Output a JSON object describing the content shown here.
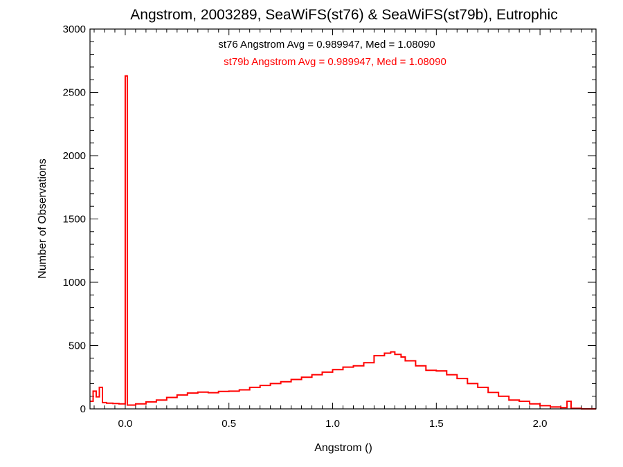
{
  "chart_data": {
    "type": "histogram",
    "title": "Angstrom, 2003289, SeaWiFS(st76) & SeaWiFS(st79b), Eutrophic",
    "xlabel": "Angstrom ()",
    "ylabel": "Number of Observations",
    "xlim": [
      -0.17,
      2.27
    ],
    "ylim": [
      0,
      3000
    ],
    "x_ticks": [
      0.0,
      0.5,
      1.0,
      1.5,
      2.0
    ],
    "x_tick_labels": [
      "0.0",
      "0.5",
      "1.0",
      "1.5",
      "2.0"
    ],
    "y_ticks": [
      0,
      500,
      1000,
      1500,
      2000,
      2500,
      3000
    ],
    "y_tick_labels": [
      "0",
      "500",
      "1000",
      "1500",
      "2000",
      "2500",
      "3000"
    ],
    "annotations": [
      {
        "text": "st76 Angstrom Avg = 0.989947, Med = 1.08090",
        "color": "#000000"
      },
      {
        "text": "st79b Angstrom Avg = 0.989947, Med = 1.08090",
        "color": "#ff0000"
      }
    ],
    "series": [
      {
        "color": "#ff0000",
        "bin_width": 0.01,
        "points": [
          [
            -0.17,
            60
          ],
          [
            -0.155,
            140
          ],
          [
            -0.14,
            95
          ],
          [
            -0.125,
            170
          ],
          [
            -0.11,
            50
          ],
          [
            -0.09,
            45
          ],
          [
            -0.06,
            42
          ],
          [
            -0.03,
            40
          ],
          [
            -0.01,
            40
          ],
          [
            0.0,
            2630
          ],
          [
            0.01,
            30
          ],
          [
            0.05,
            40
          ],
          [
            0.1,
            55
          ],
          [
            0.15,
            70
          ],
          [
            0.2,
            90
          ],
          [
            0.25,
            110
          ],
          [
            0.3,
            125
          ],
          [
            0.35,
            132
          ],
          [
            0.4,
            128
          ],
          [
            0.45,
            138
          ],
          [
            0.5,
            140
          ],
          [
            0.55,
            150
          ],
          [
            0.6,
            170
          ],
          [
            0.65,
            185
          ],
          [
            0.7,
            200
          ],
          [
            0.75,
            215
          ],
          [
            0.8,
            232
          ],
          [
            0.85,
            250
          ],
          [
            0.9,
            270
          ],
          [
            0.95,
            290
          ],
          [
            1.0,
            310
          ],
          [
            1.05,
            330
          ],
          [
            1.1,
            340
          ],
          [
            1.15,
            365
          ],
          [
            1.2,
            420
          ],
          [
            1.25,
            440
          ],
          [
            1.28,
            450
          ],
          [
            1.3,
            430
          ],
          [
            1.33,
            410
          ],
          [
            1.35,
            380
          ],
          [
            1.4,
            340
          ],
          [
            1.45,
            305
          ],
          [
            1.5,
            300
          ],
          [
            1.55,
            270
          ],
          [
            1.6,
            240
          ],
          [
            1.65,
            200
          ],
          [
            1.7,
            170
          ],
          [
            1.75,
            130
          ],
          [
            1.8,
            100
          ],
          [
            1.85,
            70
          ],
          [
            1.9,
            60
          ],
          [
            1.95,
            40
          ],
          [
            2.0,
            25
          ],
          [
            2.05,
            15
          ],
          [
            2.1,
            10
          ],
          [
            2.12,
            10
          ],
          [
            2.13,
            60
          ],
          [
            2.14,
            60
          ],
          [
            2.15,
            5
          ],
          [
            2.2,
            0
          ],
          [
            2.26,
            0
          ]
        ]
      }
    ]
  }
}
